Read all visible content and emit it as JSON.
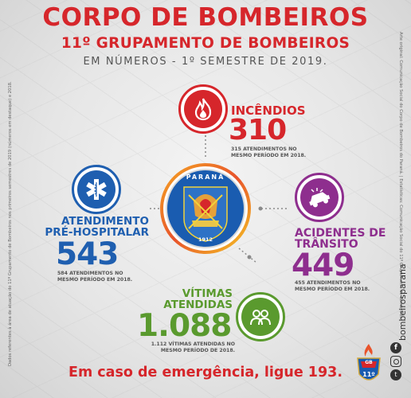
{
  "header": {
    "title": "CORPO DE BOMBEIROS",
    "subtitle": "11º GRUPAMENTO DE BOMBEIROS",
    "subline": "EM NÚMEROS - 1º SEMESTRE DE 2019."
  },
  "side_notes": {
    "left": "Dados referentes à área de atuação do 11º Grupamento de Bombeiros nos primeiros semestres de 2019 (números em destaque) e 2018.",
    "right": "Arte original: Comunicação Social do Corpo de Bombeiros do Paraná. | Estatísticas: Comunicação Social do 11º Grupamento de Bombeiros."
  },
  "emblem": {
    "top_text": "PARANÁ",
    "year": "1912"
  },
  "stats": {
    "incendios": {
      "label": "INCÊNDIOS",
      "value": "310",
      "note_line1": "315 ATENDIMENTOS NO",
      "note_line2": "MESMO PERÍODO EM 2018.",
      "color": "#d6262b",
      "icon": "fire-icon"
    },
    "aph": {
      "label_line1": "ATENDIMENTO",
      "label_line2": "PRÉ-HOSPITALAR",
      "value": "543",
      "note_line1": "584 ATENDIMENTOS NO",
      "note_line2": "MESMO PERÍODO EM 2018.",
      "color": "#1f5fb0",
      "icon": "star-of-life-icon"
    },
    "transito": {
      "label_line1": "ACIDENTES DE",
      "label_line2": "TRÂNSITO",
      "value": "449",
      "note_line1": "455 ATENDIMENTOS NO",
      "note_line2": "MESMO PERÍODO EM 2018.",
      "color": "#8e2e8e",
      "icon": "car-crash-icon"
    },
    "vitimas": {
      "label_line1": "VÍTIMAS",
      "label_line2": "ATENDIDAS",
      "value": "1.088",
      "note_line1": "1.112 VÍTIMAS ATENDIDAS NO",
      "note_line2": "MESMO PERÍODO DE 2018.",
      "color": "#5a9a2e",
      "icon": "people-icon"
    }
  },
  "footer": {
    "text": "Em caso de emergência, ligue 193."
  },
  "branding": {
    "handle": "bombeirosparana",
    "badge_text": "11º",
    "badge_top": "GB"
  }
}
